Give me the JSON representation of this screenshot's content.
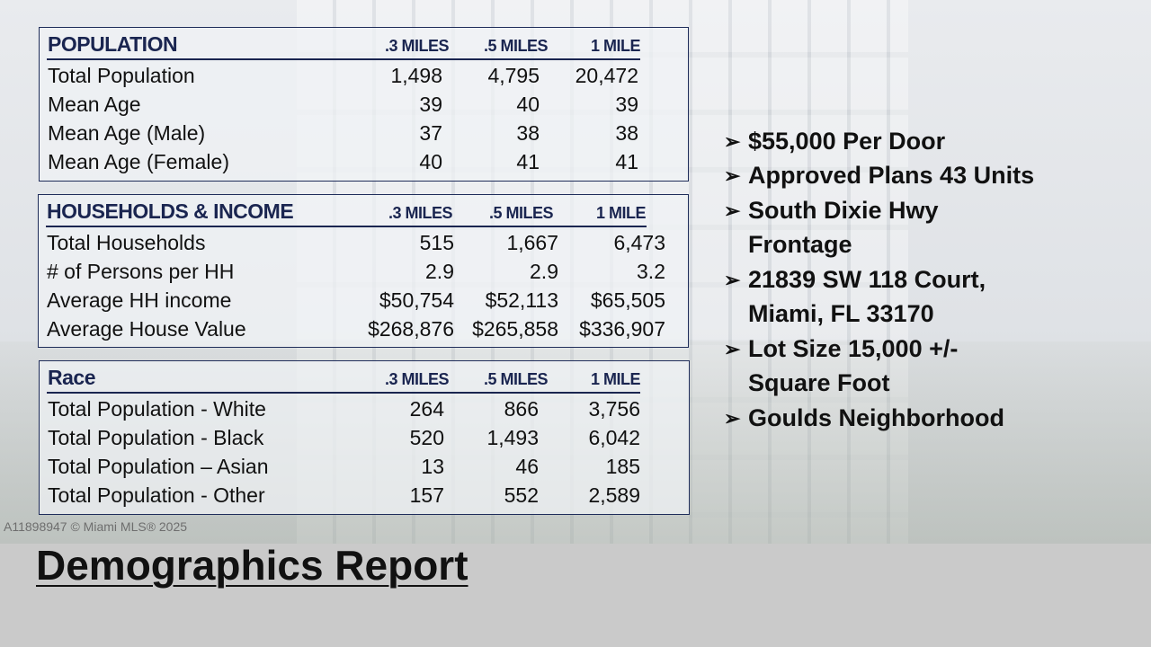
{
  "population": {
    "title": "POPULATION",
    "columns": [
      ".3 MILES",
      ".5 MILES",
      "1 MILE"
    ],
    "rows": [
      {
        "label": "Total Population",
        "values": [
          "1,498",
          "4,795",
          "20,472"
        ]
      },
      {
        "label": "Mean Age",
        "values": [
          "39",
          "40",
          "39"
        ]
      },
      {
        "label": "Mean Age (Male)",
        "values": [
          "37",
          "38",
          "38"
        ]
      },
      {
        "label": "Mean Age (Female)",
        "values": [
          "40",
          "41",
          "41"
        ]
      }
    ]
  },
  "households": {
    "title": "HOUSEHOLDS & INCOME",
    "columns": [
      ".3 MILES",
      ".5 MILES",
      "1 MILE"
    ],
    "rows": [
      {
        "label": "Total Households",
        "values": [
          "515",
          "1,667",
          "6,473"
        ]
      },
      {
        "label": "# of Persons per HH",
        "values": [
          "2.9",
          "2.9",
          "3.2"
        ]
      },
      {
        "label": "Average HH income",
        "values": [
          "$50,754",
          "$52,113",
          "$65,505"
        ]
      },
      {
        "label": "Average House Value",
        "values": [
          "$268,876",
          "$265,858",
          "$336,907"
        ]
      }
    ]
  },
  "race": {
    "title": "Race",
    "columns": [
      ".3 MILES",
      ".5 MILES",
      "1 MILE"
    ],
    "rows": [
      {
        "label": "Total Population - White",
        "values": [
          "264",
          "866",
          "3,756"
        ]
      },
      {
        "label": "Total Population - Black",
        "values": [
          "520",
          "1,493",
          "6,042"
        ]
      },
      {
        "label": "Total Population – Asian",
        "values": [
          "13",
          "46",
          "185"
        ]
      },
      {
        "label": "Total Population - Other",
        "values": [
          "157",
          "552",
          "2,589"
        ]
      }
    ]
  },
  "bullets": {
    "arrow_icon": "➢",
    "items": [
      "$55,000 Per Door",
      "Approved Plans 43 Units",
      "South Dixie Hwy",
      "Frontage",
      "21839 SW 118 Court,",
      "Miami, FL 33170",
      "Lot Size 15,000 +/-",
      "Square Foot",
      " Goulds Neighborhood"
    ]
  },
  "title": "Demographics Report",
  "watermark": "A11898947 © Miami MLS® 2025"
}
